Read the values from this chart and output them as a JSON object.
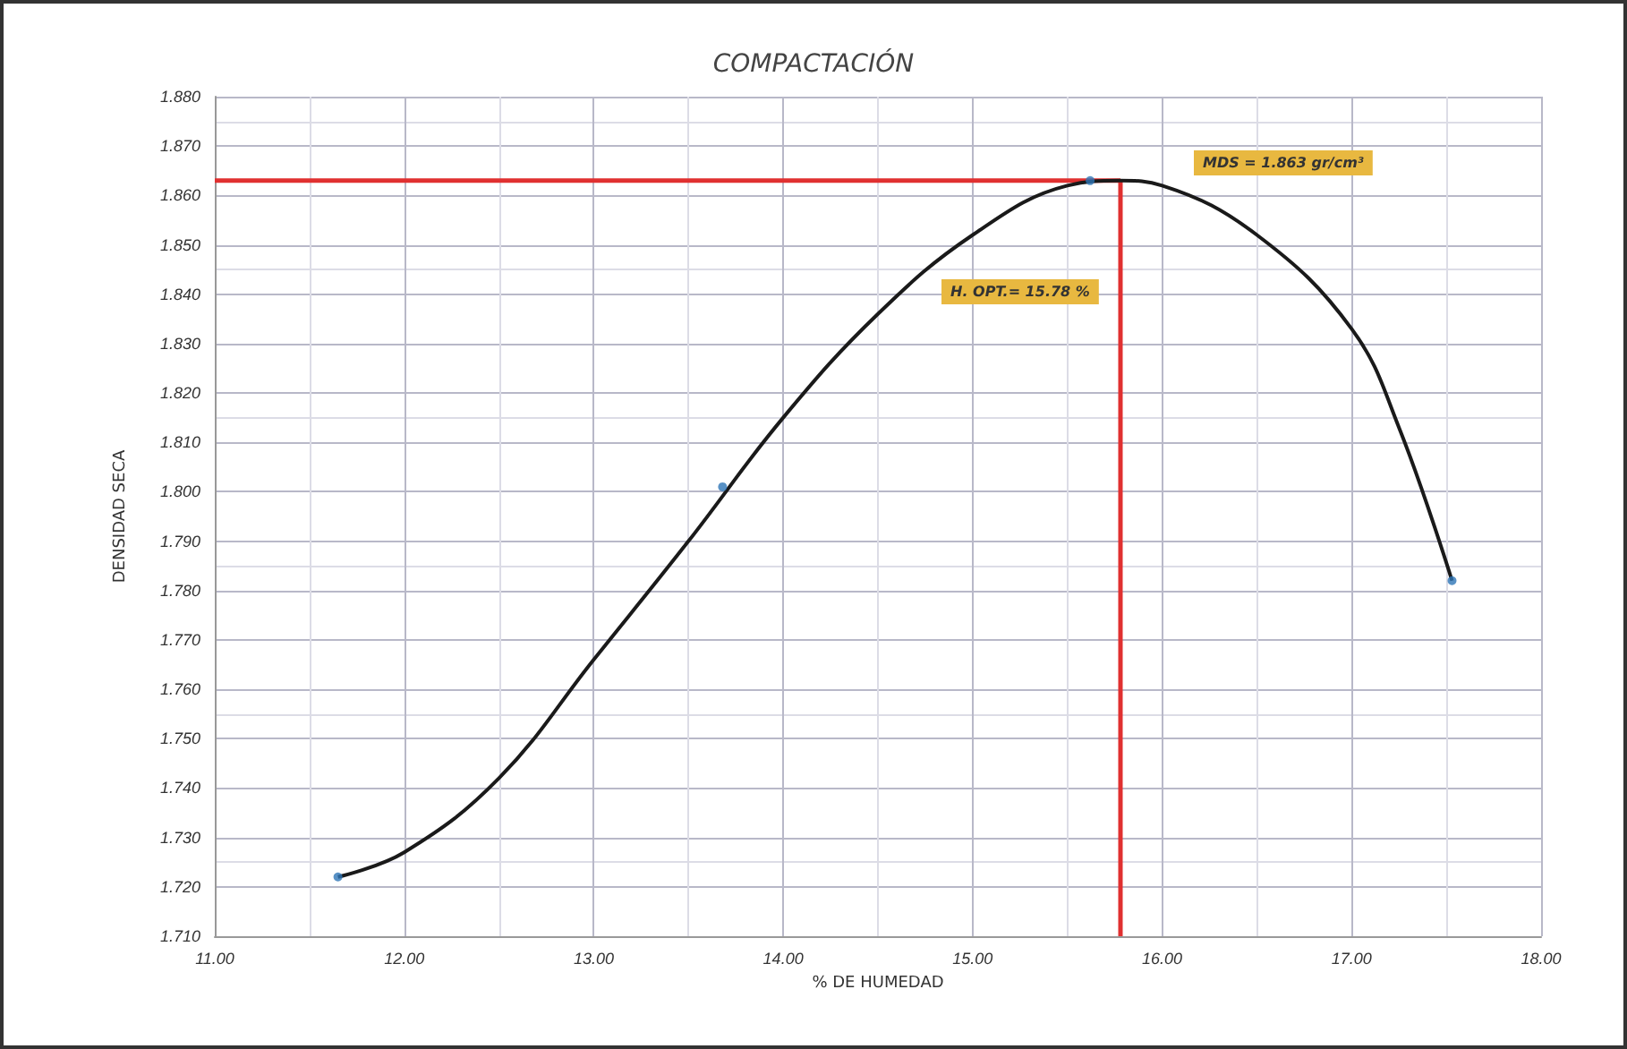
{
  "chart_data": {
    "type": "line",
    "title": "COMPACTACIÓN",
    "xlabel": "% DE HUMEDAD",
    "ylabel": "DENSIDAD SECA",
    "series": [
      {
        "type": "line",
        "color": "#1a1a1a",
        "marker": "none",
        "x": [
          11.65,
          12.0,
          12.5,
          13.0,
          13.5,
          14.0,
          14.5,
          15.0,
          15.5,
          15.78,
          16.0,
          16.5,
          17.0,
          17.25,
          17.53
        ],
        "values": [
          1.722,
          1.727,
          1.742,
          1.766,
          1.79,
          1.815,
          1.836,
          1.852,
          1.862,
          1.863,
          1.862,
          1.852,
          1.833,
          1.813,
          1.782
        ]
      },
      {
        "type": "scatter",
        "color": "#2e75b6",
        "marker": "circle",
        "x": [
          11.65,
          13.68,
          15.62,
          17.53
        ],
        "values": [
          1.722,
          1.801,
          1.863,
          1.782
        ]
      }
    ],
    "ref_lines": [
      {
        "axis": "y",
        "value": 1.863,
        "color": "#e03030"
      },
      {
        "axis": "x",
        "value": 15.78,
        "color": "#e03030"
      }
    ],
    "annotations": [
      "MDS = 1.863 gr/cm³",
      "H. OPT.= 15.78 %"
    ],
    "xlim": [
      11,
      18
    ],
    "xticks": [
      {
        "value": 11,
        "label": "11.00"
      },
      {
        "value": 12,
        "label": "12.00"
      },
      {
        "value": 13,
        "label": "13.00"
      },
      {
        "value": 14,
        "label": "14.00"
      },
      {
        "value": 15,
        "label": "15.00"
      },
      {
        "value": 16,
        "label": "16.00"
      },
      {
        "value": 17,
        "label": "17.00"
      },
      {
        "value": 18,
        "label": "18.00"
      }
    ],
    "ylim": [
      1.71,
      1.88
    ],
    "yticks": [
      {
        "value": 1.71,
        "label": "1.710"
      },
      {
        "value": 1.72,
        "label": "1.720"
      },
      {
        "value": 1.73,
        "label": "1.730"
      },
      {
        "value": 1.74,
        "label": "1.740"
      },
      {
        "value": 1.75,
        "label": "1.750"
      },
      {
        "value": 1.76,
        "label": "1.760"
      },
      {
        "value": 1.77,
        "label": "1.770"
      },
      {
        "value": 1.78,
        "label": "1.780"
      },
      {
        "value": 1.79,
        "label": "1.790"
      },
      {
        "value": 1.8,
        "label": "1.800"
      },
      {
        "value": 1.81,
        "label": "1.810"
      },
      {
        "value": 1.82,
        "label": "1.820"
      },
      {
        "value": 1.83,
        "label": "1.830"
      },
      {
        "value": 1.84,
        "label": "1.840"
      },
      {
        "value": 1.85,
        "label": "1.850"
      },
      {
        "value": 1.86,
        "label": "1.860"
      },
      {
        "value": 1.87,
        "label": "1.870"
      },
      {
        "value": 1.88,
        "label": "1.880"
      }
    ],
    "grid": true
  }
}
